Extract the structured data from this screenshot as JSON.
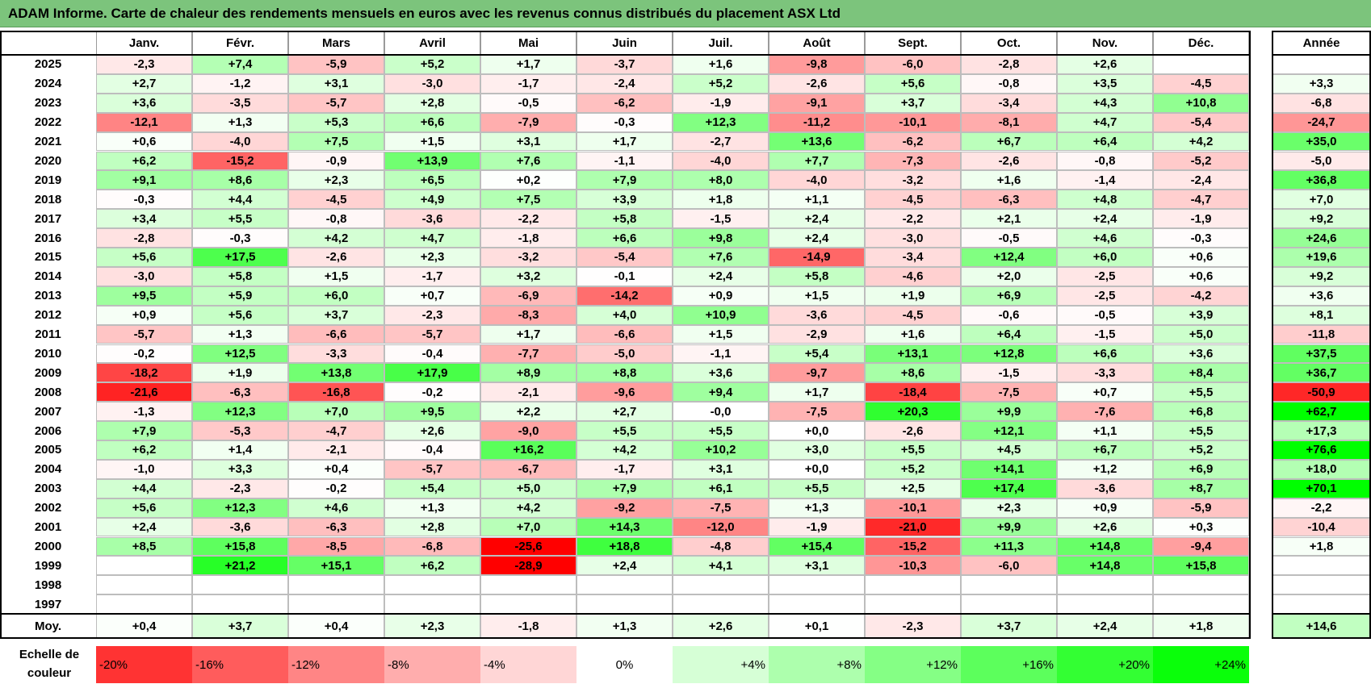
{
  "title": "ADAM Informe. Carte de chaleur des rendements mensuels en euros avec les revenus connus distribués du placement ASX Ltd",
  "chart_data": {
    "type": "heatmap",
    "title": "ADAM Informe. Carte de chaleur des rendements mensuels en euros avec les revenus connus distribués du placement ASX Ltd",
    "months": [
      "Janv.",
      "Févr.",
      "Mars",
      "Avril",
      "Mai",
      "Juin",
      "Juil.",
      "Août",
      "Sept.",
      "Oct.",
      "Nov.",
      "Déc."
    ],
    "year_header": "Année",
    "rows": [
      {
        "year": "2025",
        "values": [
          "-2,3",
          "+7,4",
          "-5,9",
          "+5,2",
          "+1,7",
          "-3,7",
          "+1,6",
          "-9,8",
          "-6,0",
          "-2,8",
          "+2,6",
          ""
        ],
        "annual": ""
      },
      {
        "year": "2024",
        "values": [
          "+2,7",
          "-1,2",
          "+3,1",
          "-3,0",
          "-1,7",
          "-2,4",
          "+5,2",
          "-2,6",
          "+5,6",
          "-0,8",
          "+3,5",
          "-4,5"
        ],
        "annual": "+3,3"
      },
      {
        "year": "2023",
        "values": [
          "+3,6",
          "-3,5",
          "-5,7",
          "+2,8",
          "-0,5",
          "-6,2",
          "-1,9",
          "-9,1",
          "+3,7",
          "-3,4",
          "+4,3",
          "+10,8"
        ],
        "annual": "-6,8"
      },
      {
        "year": "2022",
        "values": [
          "-12,1",
          "+1,3",
          "+5,3",
          "+6,6",
          "-7,9",
          "-0,3",
          "+12,3",
          "-11,2",
          "-10,1",
          "-8,1",
          "+4,7",
          "-5,4"
        ],
        "annual": "-24,7"
      },
      {
        "year": "2021",
        "values": [
          "+0,6",
          "-4,0",
          "+7,5",
          "+1,5",
          "+3,1",
          "+1,7",
          "-2,7",
          "+13,6",
          "-6,2",
          "+6,7",
          "+6,4",
          "+4,2"
        ],
        "annual": "+35,0"
      },
      {
        "year": "2020",
        "values": [
          "+6,2",
          "-15,2",
          "-0,9",
          "+13,9",
          "+7,6",
          "-1,1",
          "-4,0",
          "+7,7",
          "-7,3",
          "-2,6",
          "-0,8",
          "-5,2"
        ],
        "annual": "-5,0"
      },
      {
        "year": "2019",
        "values": [
          "+9,1",
          "+8,6",
          "+2,3",
          "+6,5",
          "+0,2",
          "+7,9",
          "+8,0",
          "-4,0",
          "-3,2",
          "+1,6",
          "-1,4",
          "-2,4"
        ],
        "annual": "+36,8"
      },
      {
        "year": "2018",
        "values": [
          "-0,3",
          "+4,4",
          "-4,5",
          "+4,9",
          "+7,5",
          "+3,9",
          "+1,8",
          "+1,1",
          "-4,5",
          "-6,3",
          "+4,8",
          "-4,7"
        ],
        "annual": "+7,0"
      },
      {
        "year": "2017",
        "values": [
          "+3,4",
          "+5,5",
          "-0,8",
          "-3,6",
          "-2,2",
          "+5,8",
          "-1,5",
          "+2,4",
          "-2,2",
          "+2,1",
          "+2,4",
          "-1,9"
        ],
        "annual": "+9,2"
      },
      {
        "year": "2016",
        "values": [
          "-2,8",
          "-0,3",
          "+4,2",
          "+4,7",
          "-1,8",
          "+6,6",
          "+9,8",
          "+2,4",
          "-3,0",
          "-0,5",
          "+4,6",
          "-0,3"
        ],
        "annual": "+24,6"
      },
      {
        "year": "2015",
        "values": [
          "+5,6",
          "+17,5",
          "-2,6",
          "+2,3",
          "-3,2",
          "-5,4",
          "+7,6",
          "-14,9",
          "-3,4",
          "+12,4",
          "+6,0",
          "+0,6"
        ],
        "annual": "+19,6"
      },
      {
        "year": "2014",
        "values": [
          "-3,0",
          "+5,8",
          "+1,5",
          "-1,7",
          "+3,2",
          "-0,1",
          "+2,4",
          "+5,8",
          "-4,6",
          "+2,0",
          "-2,5",
          "+0,6"
        ],
        "annual": "+9,2"
      },
      {
        "year": "2013",
        "values": [
          "+9,5",
          "+5,9",
          "+6,0",
          "+0,7",
          "-6,9",
          "-14,2",
          "+0,9",
          "+1,5",
          "+1,9",
          "+6,9",
          "-2,5",
          "-4,2"
        ],
        "annual": "+3,6"
      },
      {
        "year": "2012",
        "values": [
          "+0,9",
          "+5,6",
          "+3,7",
          "-2,3",
          "-8,3",
          "+4,0",
          "+10,9",
          "-3,6",
          "-4,5",
          "-0,6",
          "-0,5",
          "+3,9"
        ],
        "annual": "+8,1"
      },
      {
        "year": "2011",
        "values": [
          "-5,7",
          "+1,3",
          "-6,6",
          "-5,7",
          "+1,7",
          "-6,6",
          "+1,5",
          "-2,9",
          "+1,6",
          "+6,4",
          "-1,5",
          "+5,0"
        ],
        "annual": "-11,8"
      },
      {
        "year": "2010",
        "values": [
          "-0,2",
          "+12,5",
          "-3,3",
          "-0,4",
          "-7,7",
          "-5,0",
          "-1,1",
          "+5,4",
          "+13,1",
          "+12,8",
          "+6,6",
          "+3,6"
        ],
        "annual": "+37,5"
      },
      {
        "year": "2009",
        "values": [
          "-18,2",
          "+1,9",
          "+13,8",
          "+17,9",
          "+8,9",
          "+8,8",
          "+3,6",
          "-9,7",
          "+8,6",
          "-1,5",
          "-3,3",
          "+8,4"
        ],
        "annual": "+36,7"
      },
      {
        "year": "2008",
        "values": [
          "-21,6",
          "-6,3",
          "-16,8",
          "-0,2",
          "-2,1",
          "-9,6",
          "+9,4",
          "+1,7",
          "-18,4",
          "-7,5",
          "+0,7",
          "+5,5"
        ],
        "annual": "-50,9"
      },
      {
        "year": "2007",
        "values": [
          "-1,3",
          "+12,3",
          "+7,0",
          "+9,5",
          "+2,2",
          "+2,7",
          "-0,0",
          "-7,5",
          "+20,3",
          "+9,9",
          "-7,6",
          "+6,8"
        ],
        "annual": "+62,7"
      },
      {
        "year": "2006",
        "values": [
          "+7,9",
          "-5,3",
          "-4,7",
          "+2,6",
          "-9,0",
          "+5,5",
          "+5,5",
          "+0,0",
          "-2,6",
          "+12,1",
          "+1,1",
          "+5,5"
        ],
        "annual": "+17,3"
      },
      {
        "year": "2005",
        "values": [
          "+6,2",
          "+1,4",
          "-2,1",
          "-0,4",
          "+16,2",
          "+4,2",
          "+10,2",
          "+3,0",
          "+5,5",
          "+4,5",
          "+6,7",
          "+5,2"
        ],
        "annual": "+76,6"
      },
      {
        "year": "2004",
        "values": [
          "-1,0",
          "+3,3",
          "+0,4",
          "-5,7",
          "-6,7",
          "-1,7",
          "+3,1",
          "+0,0",
          "+5,2",
          "+14,1",
          "+1,2",
          "+6,9"
        ],
        "annual": "+18,0"
      },
      {
        "year": "2003",
        "values": [
          "+4,4",
          "-2,3",
          "-0,2",
          "+5,4",
          "+5,0",
          "+7,9",
          "+6,1",
          "+5,5",
          "+2,5",
          "+17,4",
          "-3,6",
          "+8,7"
        ],
        "annual": "+70,1"
      },
      {
        "year": "2002",
        "values": [
          "+5,6",
          "+12,3",
          "+4,6",
          "+1,3",
          "+4,2",
          "-9,2",
          "-7,5",
          "+1,3",
          "-10,1",
          "+2,3",
          "+0,9",
          "-5,9"
        ],
        "annual": "-2,2"
      },
      {
        "year": "2001",
        "values": [
          "+2,4",
          "-3,6",
          "-6,3",
          "+2,8",
          "+7,0",
          "+14,3",
          "-12,0",
          "-1,9",
          "-21,0",
          "+9,9",
          "+2,6",
          "+0,3"
        ],
        "annual": "-10,4"
      },
      {
        "year": "2000",
        "values": [
          "+8,5",
          "+15,8",
          "-8,5",
          "-6,8",
          "-25,6",
          "+18,8",
          "-4,8",
          "+15,4",
          "-15,2",
          "+11,3",
          "+14,8",
          "-9,4"
        ],
        "annual": "+1,8"
      },
      {
        "year": "1999",
        "values": [
          "",
          "+21,2",
          "+15,1",
          "+6,2",
          "-28,9",
          "+2,4",
          "+4,1",
          "+3,1",
          "-10,3",
          "-6,0",
          "+14,8",
          "+15,8"
        ],
        "annual": ""
      },
      {
        "year": "1998",
        "values": [
          "",
          "",
          "",
          "",
          "",
          "",
          "",
          "",
          "",
          "",
          "",
          ""
        ],
        "annual": ""
      },
      {
        "year": "1997",
        "values": [
          "",
          "",
          "",
          "",
          "",
          "",
          "",
          "",
          "",
          "",
          "",
          ""
        ],
        "annual": ""
      }
    ],
    "average": {
      "label": "Moy.",
      "values": [
        "+0,4",
        "+3,7",
        "+0,4",
        "+2,3",
        "-1,8",
        "+1,3",
        "+2,6",
        "+0,1",
        "-2,3",
        "+3,7",
        "+2,4",
        "+1,8"
      ],
      "annual": "+14,6"
    },
    "scale": {
      "label": "Echelle de couleur",
      "stops": [
        "-20%",
        "-16%",
        "-12%",
        "-8%",
        "-4%",
        "0%",
        "+4%",
        "+8%",
        "+12%",
        "+16%",
        "+20%",
        "+24%"
      ]
    },
    "colors": {
      "negative": "#ff0000",
      "neutral": "#ffffff",
      "positive": "#00ff00",
      "title_bar": "#7cc47c"
    }
  }
}
